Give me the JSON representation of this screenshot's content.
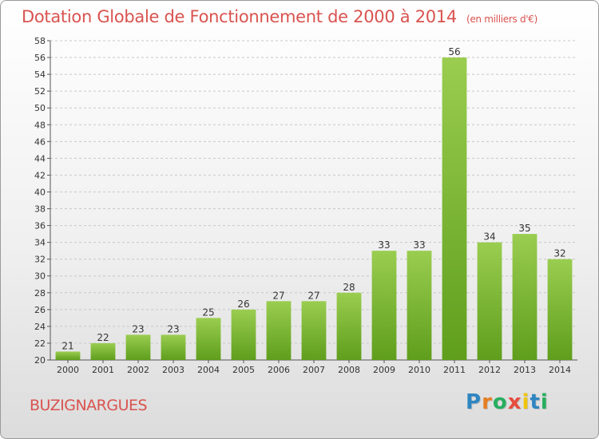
{
  "title": "Dotation Globale de Fonctionnement de 2000 à 2014",
  "subtitle": "(en milliers d'€)",
  "commune": "BUZIGNARGUES",
  "logo": {
    "letters": [
      "P",
      "r",
      "o",
      "x",
      "i",
      "t",
      "i"
    ],
    "colors": [
      "#2e86c1",
      "#e67e22",
      "#27ae60",
      "#e74c3c",
      "#f1c40f",
      "#2e86c1",
      "#27ae60"
    ]
  },
  "chart_data": {
    "type": "bar",
    "title": "Dotation Globale de Fonctionnement de 2000 à 2014",
    "subtitle": "(en milliers d'€)",
    "categories": [
      "2000",
      "2001",
      "2002",
      "2003",
      "2004",
      "2005",
      "2006",
      "2007",
      "2008",
      "2009",
      "2010",
      "2011",
      "2012",
      "2013",
      "2014"
    ],
    "values": [
      21,
      22,
      23,
      23,
      25,
      26,
      27,
      27,
      28,
      33,
      33,
      56,
      34,
      35,
      32
    ],
    "ylim": [
      20,
      58
    ],
    "yticks": [
      20,
      22,
      24,
      26,
      28,
      30,
      32,
      34,
      36,
      38,
      40,
      42,
      44,
      46,
      48,
      50,
      52,
      54,
      56,
      58
    ],
    "grid": true,
    "bar_color_top": "#9acd50",
    "bar_color_bottom": "#5f9e1c"
  }
}
